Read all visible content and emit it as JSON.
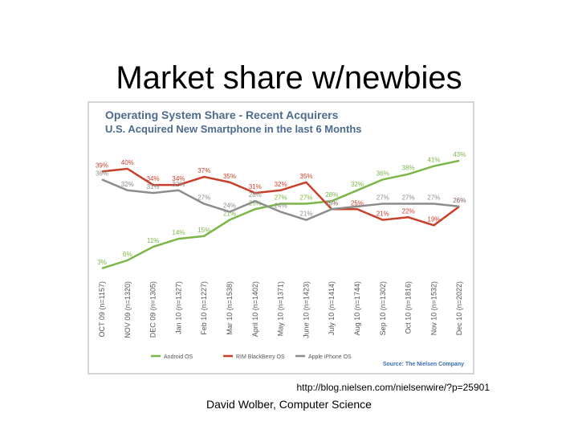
{
  "slide_title": "Market share w/newbies",
  "source_url": "http://blog.nielsen.com/nielsenwire/?p=25901",
  "footer": "David Wolber, Computer Science",
  "chart_data": {
    "type": "line",
    "title": "Operating System Share - Recent Acquirers",
    "subtitle": "U.S. Acquired New Smartphone in the last 6 Months",
    "source": "Source: The Nielsen Company",
    "categories": [
      "OCT 09 (n=1157)",
      "NOV 09 (n=1320)",
      "DEC 09 (n=1305)",
      "Jan 10 (n=1327)",
      "Feb 10 (n=1227)",
      "Mar 10 (n=1538)",
      "April 10 (n=1402)",
      "May 10 (n=1371)",
      "June 10 (n=1423)",
      "July 10 (n=1414)",
      "Aug 10 (n=1744)",
      "Sep 10 (n=1302)",
      "Oct 10 (n=1816)",
      "Nov 10 (n=1532)",
      "Dec 10 (n=2022)"
    ],
    "series": [
      {
        "name": "Android OS",
        "color": "#7ab648",
        "values": [
          3,
          6,
          11,
          14,
          15,
          21,
          25,
          27,
          27,
          28,
          32,
          36,
          38,
          41,
          43
        ],
        "value_labels": [
          "3%",
          "6%",
          "11%",
          "14%",
          "15%",
          "21%",
          "25%",
          "27%",
          "27%",
          "28%",
          "32%",
          "36%",
          "38%",
          "41%",
          "43%"
        ]
      },
      {
        "name": "RIM BlackBerry OS",
        "color": "#c8402a",
        "values": [
          39,
          40,
          34,
          34,
          37,
          35,
          31,
          32,
          35,
          25,
          25,
          21,
          22,
          19,
          26
        ],
        "value_labels": [
          "39%",
          "40%",
          "34%",
          "34%",
          "37%",
          "35%",
          "31%",
          "32%",
          "35%",
          "25%",
          "25%",
          "21%",
          "22%",
          "19%",
          "26%"
        ]
      },
      {
        "name": "Apple iPhone OS",
        "color": "#8c8c8c",
        "values": [
          36,
          32,
          31,
          32,
          27,
          24,
          28,
          24,
          21,
          25,
          26,
          27,
          27,
          27,
          26
        ],
        "value_labels": [
          "36%",
          "32%",
          "31%",
          "32%",
          "27%",
          "24%",
          "28%",
          "24%",
          "21%",
          "25%",
          null,
          "27%",
          "27%",
          "27%",
          "26%"
        ]
      }
    ]
  }
}
